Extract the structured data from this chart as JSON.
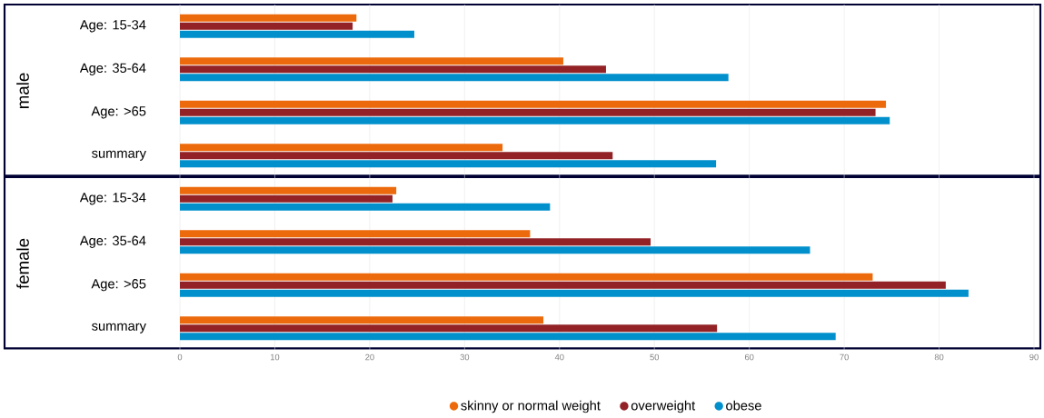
{
  "chart_data": {
    "type": "bar",
    "orientation": "horizontal",
    "categories": [
      "Age: 15-34",
      "Age: 35-64",
      "Age: >65",
      "summary",
      "Age: 15-34",
      "Age: 35-64",
      "Age: >65",
      "summary"
    ],
    "series": [
      {
        "name": "skinny or normal weight",
        "color": "#ec6a0c",
        "values": [
          18.6,
          40.4,
          74.4,
          34.0,
          22.8,
          36.9,
          73.0,
          38.3
        ]
      },
      {
        "name": "overweight",
        "color": "#922226",
        "values": [
          18.2,
          44.9,
          73.3,
          45.6,
          22.4,
          49.6,
          80.7,
          56.6
        ]
      },
      {
        "name": "obese",
        "color": "#0290cc",
        "values": [
          24.7,
          57.8,
          74.8,
          56.5,
          39.0,
          66.4,
          83.1,
          69.1
        ]
      }
    ],
    "xlim": [
      0,
      90
    ],
    "xticks": [
      0,
      10,
      20,
      30,
      40,
      50,
      60,
      70,
      80,
      90
    ],
    "grid": "x",
    "legend": "bottom",
    "annotations": [
      "male",
      "female"
    ]
  }
}
